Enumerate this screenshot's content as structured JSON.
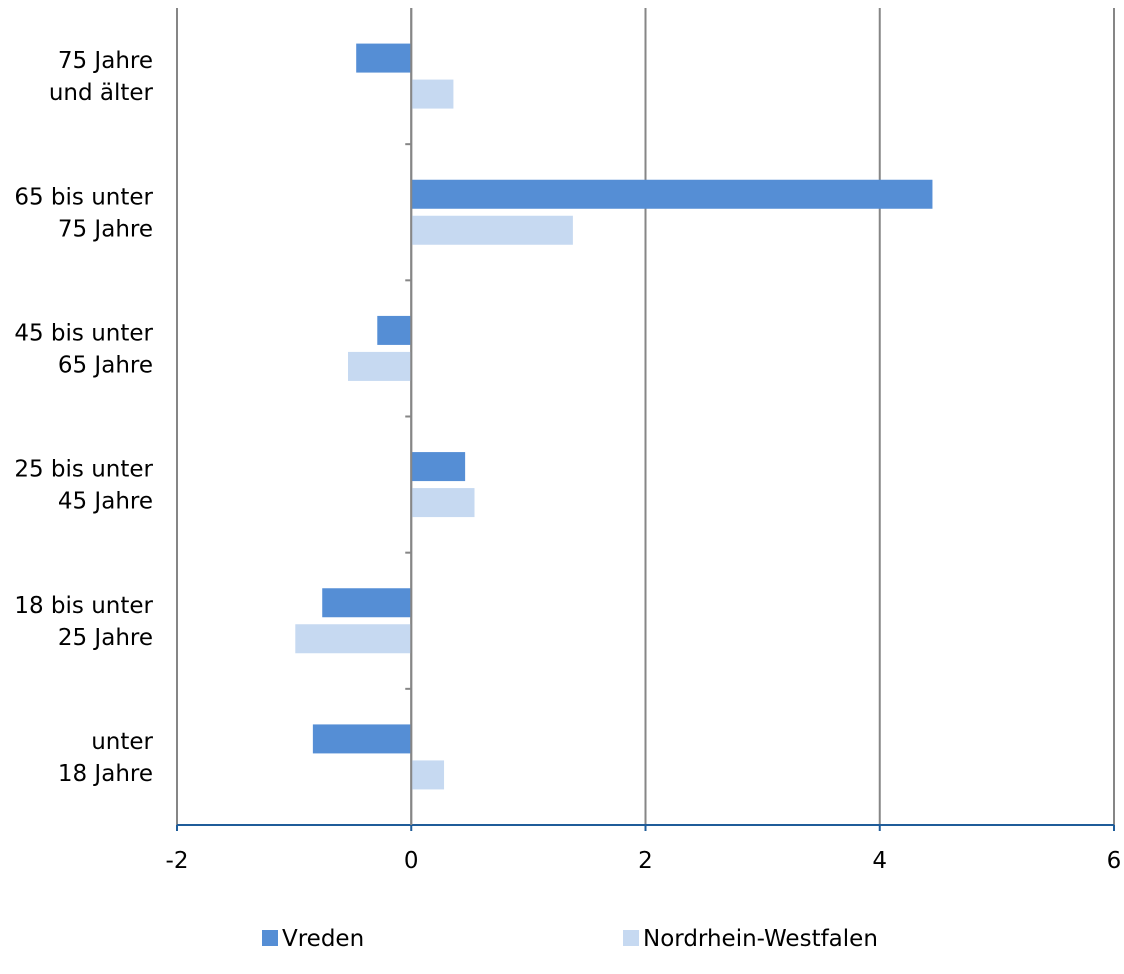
{
  "chart_data": {
    "type": "bar",
    "orientation": "horizontal",
    "categories": [
      [
        "75 Jahre",
        "und älter"
      ],
      [
        "65 bis unter",
        "75 Jahre"
      ],
      [
        "45 bis unter",
        "65 Jahre"
      ],
      [
        "25 bis unter",
        "45 Jahre"
      ],
      [
        "18 bis unter",
        "25 Jahre"
      ],
      [
        "unter",
        "18 Jahre"
      ]
    ],
    "series": [
      {
        "name": "Vreden",
        "color": "#558ed5",
        "values": [
          -0.47,
          4.45,
          -0.29,
          0.46,
          -0.76,
          -0.84
        ]
      },
      {
        "name": "Nordrhein-Westfalen",
        "color": "#c6d9f1",
        "values": [
          0.36,
          1.38,
          -0.54,
          0.54,
          -0.99,
          0.28
        ]
      }
    ],
    "xlim": [
      -2,
      6
    ],
    "xticks": [
      "-2",
      "0",
      "2",
      "4",
      "6"
    ],
    "grid": "vertical",
    "legend_position": "bottom",
    "title": "",
    "xlabel": "",
    "ylabel": ""
  }
}
